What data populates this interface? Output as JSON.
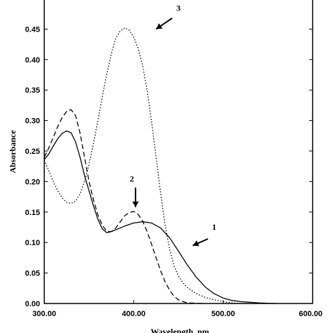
{
  "chart_data": {
    "type": "line",
    "xlabel": "Wavelength, nm",
    "ylabel": "Absorbance",
    "xlim": [
      300,
      600
    ],
    "ylim": [
      0,
      0.5
    ],
    "x_ticks": [
      "300.00",
      "400.00",
      "500.00",
      "600.00"
    ],
    "y_ticks": [
      "0.00",
      "0.05",
      "0.10",
      "0.15",
      "0.20",
      "0.25",
      "0.30",
      "0.35",
      "0.40",
      "0.45"
    ],
    "grid": false,
    "series": [
      {
        "name": "1",
        "dash": "solid",
        "x": [
          300,
          305,
          310,
          315,
          320,
          325,
          330,
          335,
          340,
          345,
          350,
          355,
          360,
          365,
          370,
          375,
          380,
          390,
          400,
          410,
          420,
          430,
          440,
          450,
          460,
          470,
          480,
          490,
          500,
          510,
          520,
          530,
          540,
          550,
          560
        ],
        "y": [
          0.236,
          0.245,
          0.258,
          0.27,
          0.279,
          0.283,
          0.28,
          0.265,
          0.24,
          0.21,
          0.185,
          0.16,
          0.138,
          0.122,
          0.116,
          0.118,
          0.121,
          0.127,
          0.132,
          0.134,
          0.132,
          0.124,
          0.108,
          0.086,
          0.063,
          0.043,
          0.027,
          0.016,
          0.009,
          0.005,
          0.003,
          0.002,
          0.001,
          0.0005,
          0
        ]
      },
      {
        "name": "2",
        "dash": "dashed",
        "x": [
          300,
          305,
          310,
          315,
          320,
          325,
          330,
          335,
          340,
          345,
          350,
          355,
          360,
          365,
          370,
          375,
          380,
          385,
          390,
          395,
          400,
          405,
          410,
          415,
          420,
          425,
          430,
          435,
          440,
          445,
          450,
          455,
          460,
          470,
          480
        ],
        "y": [
          0.24,
          0.255,
          0.272,
          0.29,
          0.305,
          0.315,
          0.318,
          0.308,
          0.28,
          0.24,
          0.2,
          0.17,
          0.145,
          0.128,
          0.118,
          0.118,
          0.124,
          0.134,
          0.144,
          0.149,
          0.151,
          0.146,
          0.135,
          0.118,
          0.097,
          0.075,
          0.054,
          0.036,
          0.022,
          0.012,
          0.006,
          0.003,
          0.001,
          0.0003,
          0
        ]
      },
      {
        "name": "3",
        "dash": "dotted",
        "x": [
          300,
          305,
          310,
          315,
          320,
          325,
          330,
          335,
          340,
          345,
          350,
          355,
          360,
          365,
          370,
          375,
          380,
          385,
          390,
          395,
          400,
          405,
          410,
          415,
          420,
          425,
          430,
          435,
          440,
          445,
          450,
          455,
          460,
          470,
          480,
          490,
          500,
          510,
          520
        ],
        "y": [
          0.235,
          0.218,
          0.2,
          0.185,
          0.173,
          0.166,
          0.164,
          0.168,
          0.18,
          0.2,
          0.228,
          0.262,
          0.3,
          0.34,
          0.377,
          0.41,
          0.435,
          0.447,
          0.452,
          0.448,
          0.437,
          0.418,
          0.39,
          0.35,
          0.298,
          0.24,
          0.182,
          0.13,
          0.09,
          0.062,
          0.045,
          0.034,
          0.026,
          0.016,
          0.01,
          0.006,
          0.003,
          0.001,
          0
        ]
      }
    ],
    "annotations": [
      {
        "label": "1",
        "arrow_from": [
          483,
          0.106
        ],
        "arrow_to": [
          466,
          0.095
        ],
        "label_at": [
          490,
          0.121
        ]
      },
      {
        "label": "2",
        "arrow_from": [
          402,
          0.19
        ],
        "arrow_to": [
          402,
          0.158
        ],
        "label_at": [
          398,
          0.2
        ]
      },
      {
        "label": "3",
        "arrow_from": [
          443,
          0.468
        ],
        "arrow_to": [
          425,
          0.45
        ],
        "label_at": [
          450,
          0.48
        ]
      }
    ]
  }
}
